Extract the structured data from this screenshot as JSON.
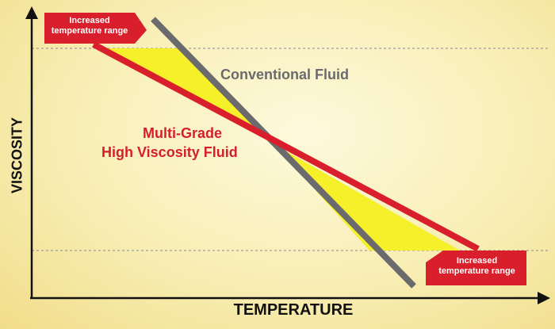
{
  "diagram": {
    "x_axis_label": "TEMPERATURE",
    "y_axis_label": "VISCOSITY",
    "conventional_label": "Conventional Fluid",
    "multigrade_label_line1": "Multi-Grade",
    "multigrade_label_line2": "High Viscosity Fluid",
    "callout_top_line1": "Increased",
    "callout_top_line2": "temperature range",
    "callout_bottom_line1": "Increased",
    "callout_bottom_line2": "temperature range"
  },
  "colors": {
    "conventional_line": "#6b6b6d",
    "multigrade_line": "#d91f2b",
    "fill": "#f5f02a",
    "callout": "#d91f2b",
    "axis": "#111111",
    "guide": "#8a8a8a"
  }
}
